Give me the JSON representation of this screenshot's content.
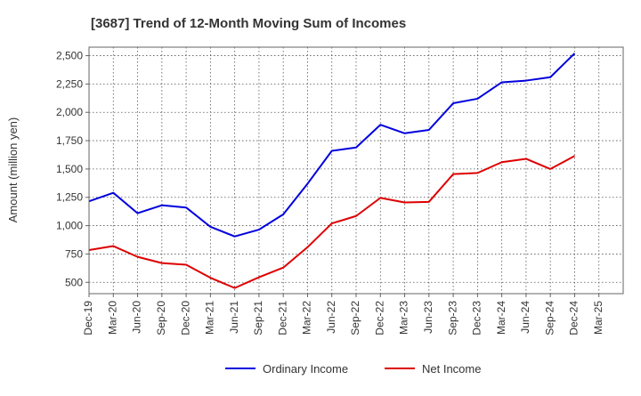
{
  "chart_data": {
    "type": "line",
    "title": "[3687]  Trend of 12-Month Moving Sum of Incomes",
    "xlabel": "",
    "ylabel": "Amount (million yen)",
    "ylim": [
      400,
      2575
    ],
    "yticks": [
      500,
      750,
      1000,
      1250,
      1500,
      1750,
      2000,
      2250,
      2500
    ],
    "ytick_labels": [
      "500",
      "750",
      "1,000",
      "1,250",
      "1,500",
      "1,750",
      "2,000",
      "2,250",
      "2,500"
    ],
    "categories": [
      "Dec-19",
      "Mar-20",
      "Jun-20",
      "Sep-20",
      "Dec-20",
      "Mar-21",
      "Jun-21",
      "Sep-21",
      "Dec-21",
      "Mar-22",
      "Jun-22",
      "Sep-22",
      "Dec-22",
      "Mar-23",
      "Jun-23",
      "Sep-23",
      "Dec-23",
      "Mar-24",
      "Jun-24",
      "Sep-24",
      "Dec-24",
      "Mar-25"
    ],
    "grid": true,
    "legend_position": "bottom",
    "series": [
      {
        "name": "Ordinary Income",
        "color": "#0000dd",
        "values": [
          1215,
          1290,
          1110,
          1180,
          1160,
          990,
          905,
          965,
          1100,
          1370,
          1660,
          1690,
          1890,
          1815,
          1845,
          2080,
          2120,
          2265,
          2280,
          2310,
          2520,
          null
        ]
      },
      {
        "name": "Net Income",
        "color": "#dd0000",
        "values": [
          785,
          820,
          725,
          670,
          655,
          540,
          450,
          545,
          630,
          810,
          1020,
          1085,
          1245,
          1205,
          1210,
          1455,
          1465,
          1560,
          1590,
          1500,
          1615,
          null
        ]
      }
    ]
  }
}
